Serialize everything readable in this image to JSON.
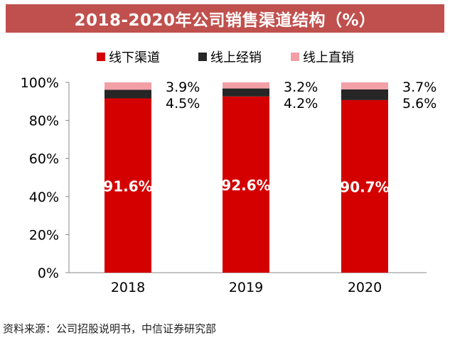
{
  "chart_data": {
    "type": "bar",
    "stacked": true,
    "title": "2018-2020年公司销售渠道结构（%）",
    "categories": [
      "2018",
      "2019",
      "2020"
    ],
    "series": [
      {
        "name": "线下渠道",
        "color": "#d40000",
        "values": [
          91.6,
          92.6,
          90.7
        ],
        "labels": [
          "91.6%",
          "92.6%",
          "90.7%"
        ]
      },
      {
        "name": "线上经销",
        "color": "#262626",
        "values": [
          4.5,
          4.2,
          5.6
        ],
        "labels": [
          "4.5%",
          "4.2%",
          "5.6%"
        ]
      },
      {
        "name": "线上直销",
        "color": "#f2a0a6",
        "values": [
          3.9,
          3.2,
          3.7
        ],
        "labels": [
          "3.9%",
          "3.2%",
          "3.7%"
        ]
      }
    ],
    "ylim": [
      0,
      100
    ],
    "yticks": [
      "0%",
      "20%",
      "40%",
      "60%",
      "80%",
      "100%"
    ],
    "legend": "top",
    "grid": false,
    "source": "资料来源：公司招股说明书，中信证券研究部"
  }
}
